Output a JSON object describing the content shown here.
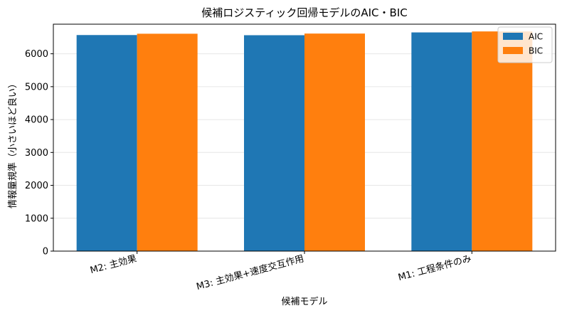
{
  "chart_data": {
    "type": "bar",
    "title": "候補ロジスティック回帰モデルのAIC・BIC",
    "xlabel": "候補モデル",
    "ylabel": "情報量規準（小さいほど良い）",
    "categories": [
      "M2: 主効果",
      "M3: 主効果+速度交互作用",
      "M1: 工程条件のみ"
    ],
    "series": [
      {
        "name": "AIC",
        "color": "#1f77b4",
        "values": [
          6570,
          6565,
          6650
        ]
      },
      {
        "name": "BIC",
        "color": "#ff7f0e",
        "values": [
          6610,
          6615,
          6680
        ]
      }
    ],
    "yticks": [
      0,
      1000,
      2000,
      3000,
      4000,
      5000,
      6000
    ],
    "ylim": [
      0,
      6900
    ],
    "grid": "y",
    "legend": "top-right"
  }
}
